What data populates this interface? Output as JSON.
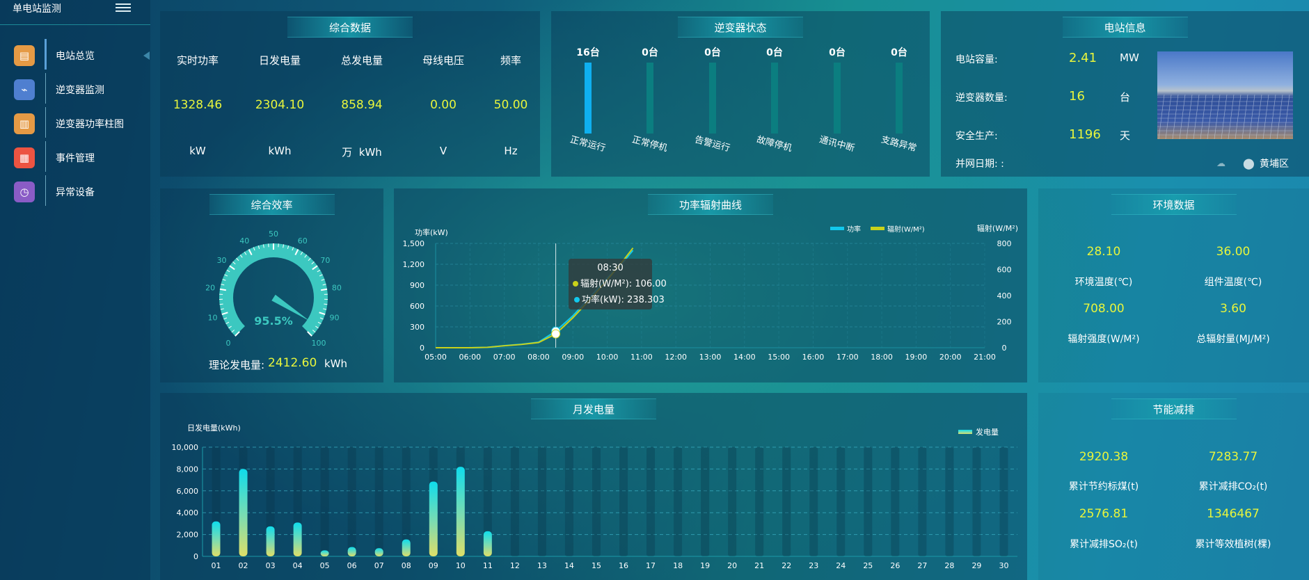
{
  "sidebar": {
    "title": "单电站监测",
    "items": [
      {
        "label": "电站总览",
        "icon": "document-icon",
        "color": "#e59a45",
        "glyph": "▤",
        "active": true
      },
      {
        "label": "逆变器监测",
        "icon": "monitor-pulse-icon",
        "color": "#4f7fd0",
        "glyph": "⌁",
        "active": false
      },
      {
        "label": "逆变器功率柱图",
        "icon": "bar-chart-icon",
        "color": "#e59a45",
        "glyph": "▥",
        "active": false
      },
      {
        "label": "事件管理",
        "icon": "clipboard-icon",
        "color": "#ec5442",
        "glyph": "▦",
        "active": false
      },
      {
        "label": "异常设备",
        "icon": "list-clock-icon",
        "color": "#8a5cc6",
        "glyph": "◷",
        "active": false
      }
    ]
  },
  "summary": {
    "title": "综合数据",
    "columns": [
      {
        "header": "实时功率",
        "value": "1328.46",
        "unit": "kW"
      },
      {
        "header": "日发电量",
        "value": "2304.10",
        "unit": "kWh"
      },
      {
        "header": "总发电量",
        "value": "858.94",
        "unit": "万  kWh"
      },
      {
        "header": "母线电压",
        "value": "0.00",
        "unit": "V"
      },
      {
        "header": "频率",
        "value": "50.00",
        "unit": "Hz"
      }
    ]
  },
  "inverter_status": {
    "title": "逆变器状态",
    "total": 16,
    "items": [
      {
        "count": "16台",
        "value": 16,
        "label": "正常运行"
      },
      {
        "count": "0台",
        "value": 0,
        "label": "正常停机"
      },
      {
        "count": "0台",
        "value": 0,
        "label": "告警运行"
      },
      {
        "count": "0台",
        "value": 0,
        "label": "故障停机"
      },
      {
        "count": "0台",
        "value": 0,
        "label": "通讯中断"
      },
      {
        "count": "0台",
        "value": 0,
        "label": "支路异常"
      }
    ],
    "active_color": "#0fb0f0",
    "track_color": "#0b7e80"
  },
  "station_info": {
    "title": "电站信息",
    "rows": [
      {
        "label": "电站容量:",
        "value": "2.41",
        "unit": "MW"
      },
      {
        "label": "逆变器数量:",
        "value": "16",
        "unit": "台"
      },
      {
        "label": "安全生产:",
        "value": "1196",
        "unit": "天"
      }
    ],
    "grid_date_label": "并网日期: :",
    "location": "黄埔区",
    "weather_icon": "cloud-question-icon",
    "location_icon": "map-pin-icon"
  },
  "efficiency": {
    "title": "综合效率",
    "value": 95.5,
    "value_label": "95.5%",
    "min": 0,
    "max": 100,
    "tick_labels": [
      "0",
      "10",
      "20",
      "30",
      "40",
      "50",
      "60",
      "70",
      "80",
      "90",
      "100"
    ],
    "theoretical_label": "理论发电量:",
    "theoretical_value": "2412.60",
    "theoretical_unit": "kWh",
    "color": "#3cc8c0"
  },
  "chart_data": [
    {
      "type": "line",
      "title": "功率辐射曲线",
      "ylabel": "功率(kW)",
      "y2label": "辐射(W/M²)",
      "ylim": [
        0,
        1500
      ],
      "y2lim": [
        0,
        800
      ],
      "yticks": [
        "0",
        "300",
        "600",
        "900",
        "1,200",
        "1,500"
      ],
      "y2ticks": [
        "0",
        "200",
        "400",
        "600",
        "800"
      ],
      "xticks": [
        "05:00",
        "06:00",
        "07:00",
        "08:00",
        "09:00",
        "10:00",
        "11:00",
        "12:00",
        "13:00",
        "14:00",
        "15:00",
        "16:00",
        "17:00",
        "18:00",
        "19:00",
        "20:00",
        "21:00"
      ],
      "legend": "top-right",
      "x": [
        "05:00",
        "06:00",
        "06:30",
        "07:00",
        "07:30",
        "08:00",
        "08:30",
        "09:00",
        "09:30",
        "10:00",
        "10:30",
        "10:45"
      ],
      "series": [
        {
          "name": "功率",
          "axis": "left",
          "color": "#12c8ec",
          "values": [
            0,
            0,
            5,
            30,
            50,
            80,
            238.303,
            460,
            730,
            1000,
            1250,
            1400
          ]
        },
        {
          "name": "辐射(W/M²)",
          "axis": "right",
          "color": "#c9d21a",
          "values": [
            0,
            0,
            3,
            15,
            25,
            40,
            106,
            230,
            370,
            520,
            680,
            765
          ]
        }
      ],
      "tooltip": {
        "time": "08:30",
        "rows": [
          {
            "text": "辐射(W/M²): 106.00",
            "color": "#c9d21a"
          },
          {
            "text": "功率(kW): 238.303",
            "color": "#12c8ec"
          }
        ]
      }
    },
    {
      "type": "bar",
      "title": "月发电量",
      "ylabel": "日发电量(kWh)",
      "ylim": [
        0,
        10000
      ],
      "yticks": [
        "0",
        "2,000",
        "4,000",
        "6,000",
        "8,000",
        "10,000"
      ],
      "legend": "top-right",
      "categories": [
        "01",
        "02",
        "03",
        "04",
        "05",
        "06",
        "07",
        "08",
        "09",
        "10",
        "11",
        "12",
        "13",
        "14",
        "15",
        "16",
        "17",
        "18",
        "19",
        "20",
        "21",
        "22",
        "23",
        "24",
        "25",
        "26",
        "27",
        "28",
        "29",
        "30"
      ],
      "series": [
        {
          "name": "发电量",
          "values": [
            3200,
            8000,
            2750,
            3100,
            550,
            850,
            750,
            1550,
            6850,
            8200,
            2300,
            null,
            null,
            null,
            null,
            null,
            null,
            null,
            null,
            null,
            null,
            null,
            null,
            null,
            null,
            null,
            null,
            null,
            null,
            null
          ]
        }
      ]
    }
  ],
  "environment": {
    "title": "环境数据",
    "items": [
      {
        "value": "28.10",
        "label": "环境温度(℃)"
      },
      {
        "value": "36.00",
        "label": "组件温度(℃)"
      },
      {
        "value": "708.00",
        "label": "辐射强度(W/M²)"
      },
      {
        "value": "3.60",
        "label": "总辐射量(MJ/M²)"
      }
    ]
  },
  "energy_saving": {
    "title": "节能减排",
    "items": [
      {
        "value": "2920.38",
        "label": "累计节约标煤(t)"
      },
      {
        "value": "7283.77",
        "label": "累计减排CO₂(t)"
      },
      {
        "value": "2576.81",
        "label": "累计减排SO₂(t)"
      },
      {
        "value": "1346467",
        "label": "累计等效植树(棵)"
      }
    ]
  }
}
